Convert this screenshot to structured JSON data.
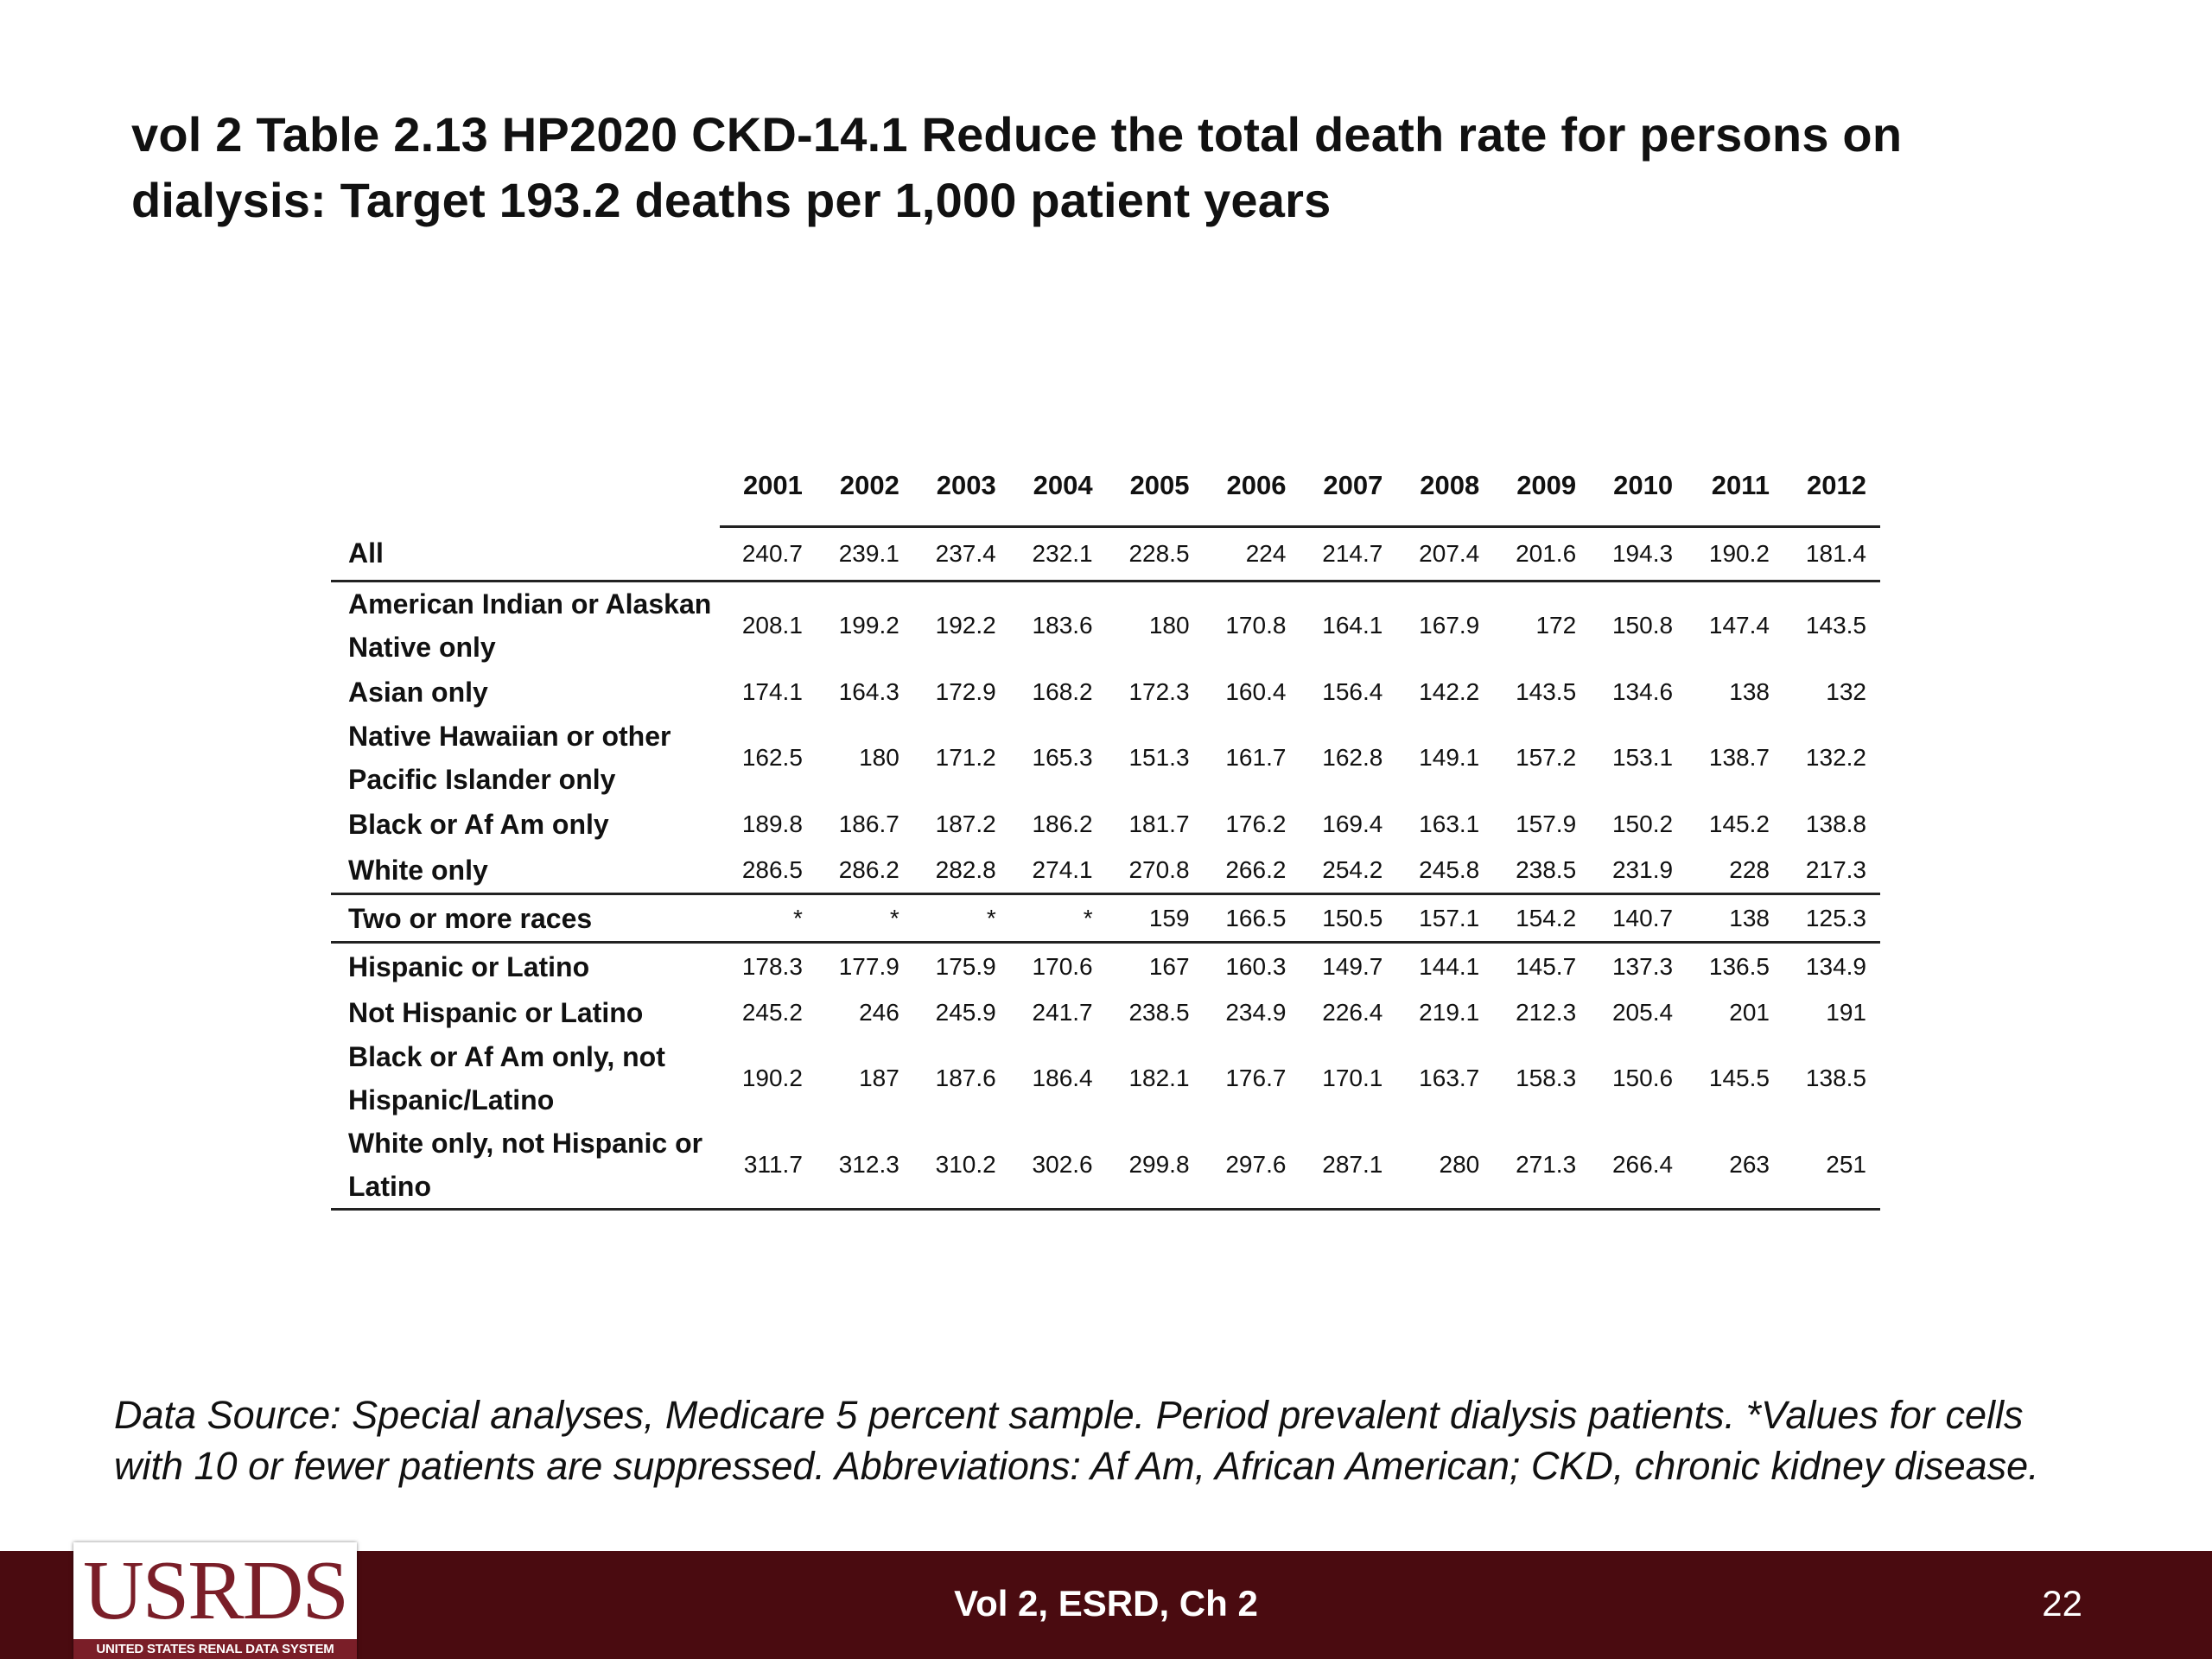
{
  "slide": {
    "title": "vol 2 Table 2.13  HP2020 CKD-14.1 Reduce the total death rate for persons on dialysis: Target 193.2 deaths per 1,000 patient years",
    "footnote": "Data Source: Special analyses, Medicare 5 percent sample. Period prevalent dialysis patients. *Values for cells with 10 or fewer patients are suppressed. Abbreviations: Af Am, African American; CKD, chronic kidney disease."
  },
  "table": {
    "years": [
      "2001",
      "2002",
      "2003",
      "2004",
      "2005",
      "2006",
      "2007",
      "2008",
      "2009",
      "2010",
      "2011",
      "2012"
    ],
    "rows": [
      {
        "label": "All",
        "values": [
          "240.7",
          "239.1",
          "237.4",
          "232.1",
          "228.5",
          "224",
          "214.7",
          "207.4",
          "201.6",
          "194.3",
          "190.2",
          "181.4"
        ]
      },
      {
        "label": "American Indian or Alaskan Native only",
        "values": [
          "208.1",
          "199.2",
          "192.2",
          "183.6",
          "180",
          "170.8",
          "164.1",
          "167.9",
          "172",
          "150.8",
          "147.4",
          "143.5"
        ]
      },
      {
        "label": "Asian only",
        "values": [
          "174.1",
          "164.3",
          "172.9",
          "168.2",
          "172.3",
          "160.4",
          "156.4",
          "142.2",
          "143.5",
          "134.6",
          "138",
          "132"
        ]
      },
      {
        "label": "Native Hawaiian or other Pacific Islander only",
        "values": [
          "162.5",
          "180",
          "171.2",
          "165.3",
          "151.3",
          "161.7",
          "162.8",
          "149.1",
          "157.2",
          "153.1",
          "138.7",
          "132.2"
        ]
      },
      {
        "label": "Black or Af Am only",
        "values": [
          "189.8",
          "186.7",
          "187.2",
          "186.2",
          "181.7",
          "176.2",
          "169.4",
          "163.1",
          "157.9",
          "150.2",
          "145.2",
          "138.8"
        ]
      },
      {
        "label": "White only",
        "values": [
          "286.5",
          "286.2",
          "282.8",
          "274.1",
          "270.8",
          "266.2",
          "254.2",
          "245.8",
          "238.5",
          "231.9",
          "228",
          "217.3"
        ]
      },
      {
        "label": "Two or more races",
        "values": [
          "*",
          "*",
          "*",
          "*",
          "159",
          "166.5",
          "150.5",
          "157.1",
          "154.2",
          "140.7",
          "138",
          "125.3"
        ]
      },
      {
        "label": "Hispanic or Latino",
        "values": [
          "178.3",
          "177.9",
          "175.9",
          "170.6",
          "167",
          "160.3",
          "149.7",
          "144.1",
          "145.7",
          "137.3",
          "136.5",
          "134.9"
        ]
      },
      {
        "label": "Not Hispanic or Latino",
        "values": [
          "245.2",
          "246",
          "245.9",
          "241.7",
          "238.5",
          "234.9",
          "226.4",
          "219.1",
          "212.3",
          "205.4",
          "201",
          "191"
        ]
      },
      {
        "label": "Black or Af Am only, not Hispanic/Latino",
        "values": [
          "190.2",
          "187",
          "187.6",
          "186.4",
          "182.1",
          "176.7",
          "170.1",
          "163.7",
          "158.3",
          "150.6",
          "145.5",
          "138.5"
        ]
      },
      {
        "label": "White only, not Hispanic or Latino",
        "values": [
          "311.7",
          "312.3",
          "310.2",
          "302.6",
          "299.8",
          "297.6",
          "287.1",
          "280",
          "271.3",
          "266.4",
          "263",
          "251"
        ]
      }
    ]
  },
  "footer": {
    "logo_text": "USRDS",
    "logo_subtitle": "UNITED STATES RENAL DATA SYSTEM",
    "center_text": "Vol 2, ESRD, Ch 2",
    "page_number": "22",
    "bar_color": "#4a0b10",
    "logo_color": "#7a1e28"
  }
}
